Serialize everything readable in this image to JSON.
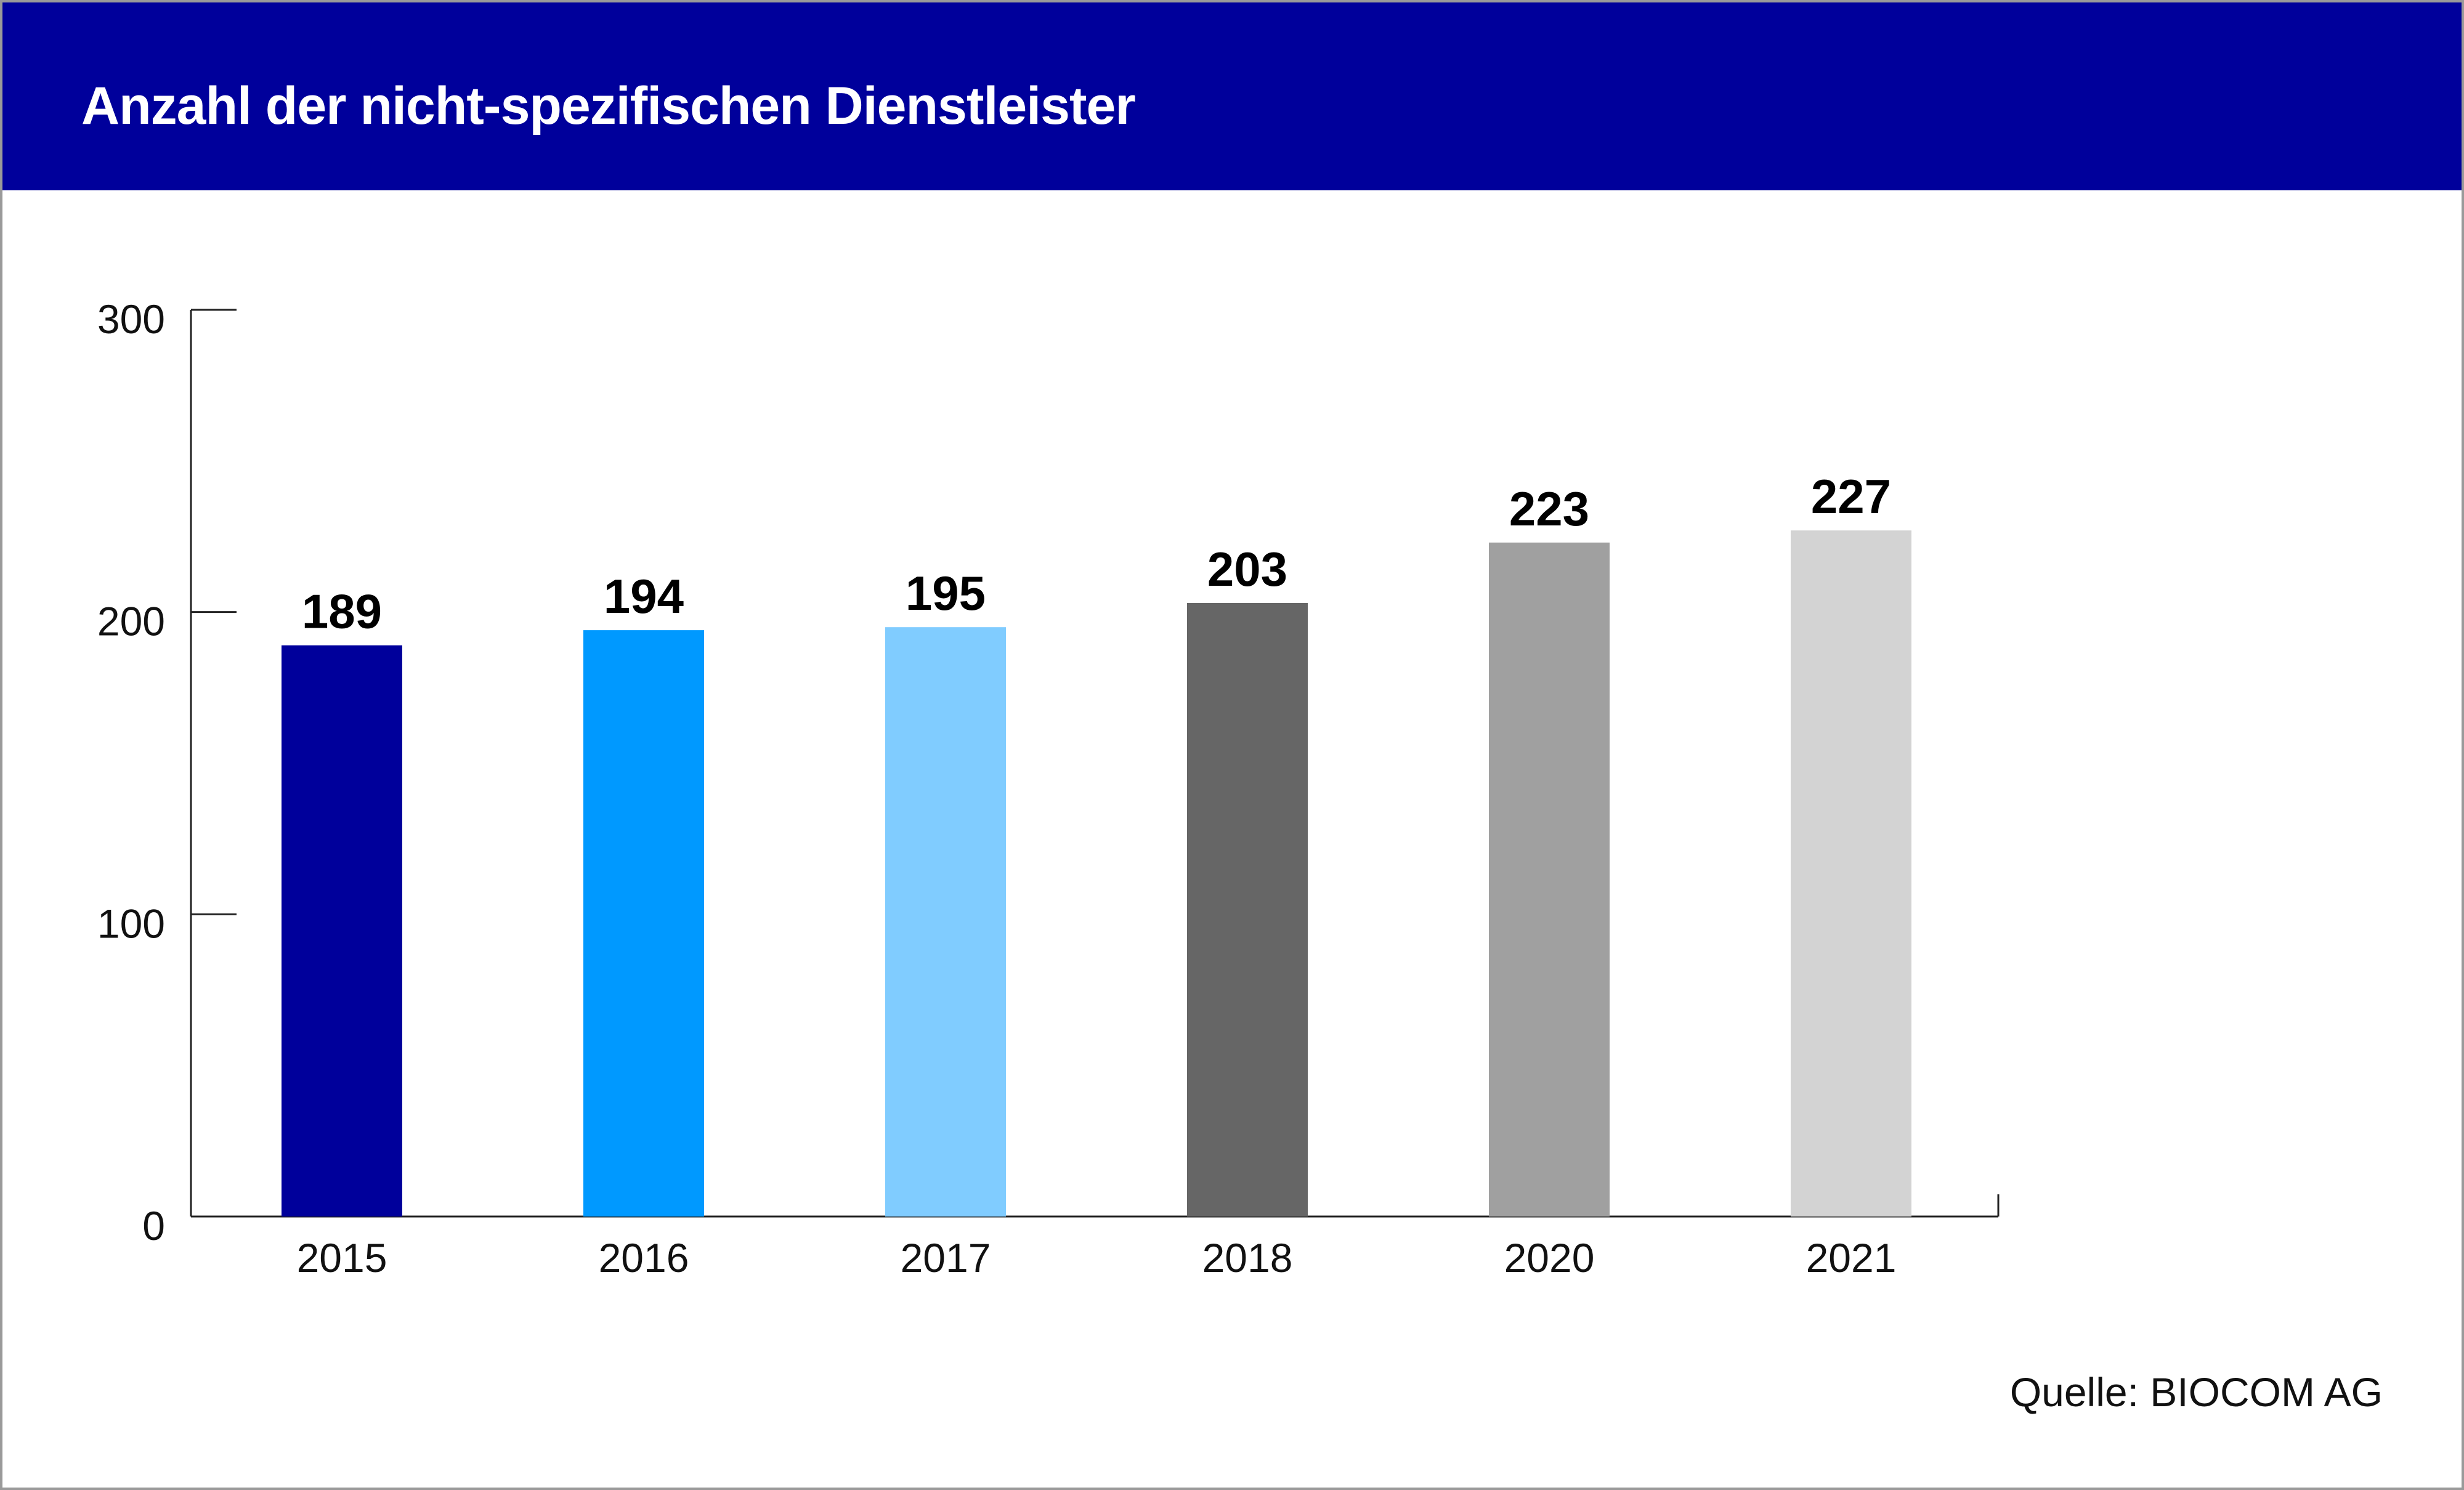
{
  "colors": {
    "header_bg": "#00009b",
    "frame_border": "#9a9a9a",
    "bar_colors": [
      "#00009b",
      "#0099ff",
      "#80ccff",
      "#666666",
      "#a0a0a0",
      "#d3d3d3"
    ]
  },
  "chart_data": {
    "type": "bar",
    "title": "Anzahl der nicht-spezifischen Dienstleister",
    "xlabel": "",
    "ylabel": "",
    "categories": [
      "2015",
      "2016",
      "2017",
      "2018",
      "2020",
      "2021"
    ],
    "values": [
      189,
      194,
      195,
      203,
      223,
      227
    ],
    "value_labels": [
      "189",
      "194",
      "195",
      "203",
      "223",
      "227"
    ],
    "ylim": [
      0,
      300
    ],
    "yticks": [
      0,
      100,
      200,
      300
    ],
    "ytick_labels": [
      "0",
      "100",
      "200",
      "300"
    ],
    "grid": false,
    "legend": "none"
  },
  "source": "Quelle: BIOCOM AG"
}
